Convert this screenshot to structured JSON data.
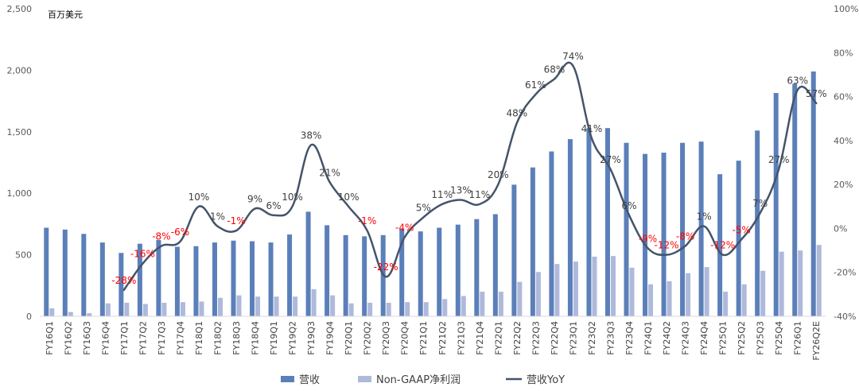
{
  "chart_data": {
    "type": "bar",
    "unit_label": "百万美元",
    "categories": [
      "FY16Q1",
      "FY16Q2",
      "FY16Q3",
      "FY16Q4",
      "FY17Q1",
      "FY17Q2",
      "FY17Q3",
      "FY17Q4",
      "FY18Q1",
      "FY18Q2",
      "FY18Q3",
      "FY18Q4",
      "FY19Q1",
      "FY19Q2",
      "FY19Q3",
      "FY19Q4",
      "FY20Q1",
      "FY20Q2",
      "FY20Q3",
      "FY20Q4",
      "FY21Q1",
      "FY21Q2",
      "FY21Q3",
      "FY21Q4",
      "FY22Q1",
      "FY22Q2",
      "FY22Q3",
      "FY22Q4",
      "FY23Q1",
      "FY23Q2",
      "FY23Q3",
      "FY23Q4",
      "FY24Q1",
      "FY24Q2",
      "FY24Q3",
      "FY24Q4",
      "FY25Q1",
      "FY25Q2",
      "FY25Q3",
      "FY25Q4",
      "FY26Q1",
      "FY26Q2E"
    ],
    "series": [
      {
        "name": "营收",
        "type": "bar",
        "axis": "left",
        "color": "#5b7fb9",
        "values": [
          720,
          705,
          670,
          600,
          515,
          590,
          620,
          565,
          570,
          600,
          615,
          610,
          600,
          665,
          850,
          740,
          660,
          650,
          660,
          710,
          690,
          720,
          745,
          790,
          830,
          1070,
          1210,
          1340,
          1440,
          1530,
          1530,
          1410,
          1320,
          1330,
          1410,
          1420,
          1155,
          1265,
          1510,
          1815,
          1890,
          1990
        ]
      },
      {
        "name": "Non-GAAP净利润",
        "type": "bar",
        "axis": "left",
        "color": "#aeb9db",
        "values": [
          65,
          35,
          25,
          105,
          110,
          100,
          110,
          115,
          120,
          150,
          170,
          160,
          160,
          160,
          220,
          170,
          105,
          110,
          110,
          115,
          115,
          140,
          165,
          200,
          200,
          280,
          360,
          425,
          445,
          485,
          490,
          395,
          260,
          285,
          350,
          400,
          200,
          260,
          370,
          525,
          535,
          580
        ]
      },
      {
        "name": "营收YoY",
        "type": "line",
        "axis": "right",
        "color": "#44546a",
        "values": [
          null,
          null,
          null,
          null,
          -28,
          -16,
          -8,
          -6,
          10,
          1,
          -1,
          9,
          6,
          10,
          38,
          21,
          10,
          -1,
          -22,
          -4,
          5,
          11,
          13,
          11,
          20,
          48,
          61,
          68,
          74,
          41,
          27,
          6,
          -9,
          -12,
          -8,
          1,
          -12,
          -5,
          7,
          27,
          63,
          57
        ],
        "labels": [
          "",
          "",
          "",
          "",
          "-28%",
          "-16%",
          "-8%",
          "-6%",
          "10%",
          "1%",
          "-1%",
          "9%",
          "6%",
          "10%",
          "38%",
          "21%",
          "10%",
          "-1%",
          "-22%",
          "-4%",
          "5%",
          "11%",
          "13%",
          "11%",
          "20%",
          "48%",
          "61%",
          "68%",
          "74%",
          "41%",
          "27%",
          "6%",
          "-9%",
          "-12%",
          "-8%",
          "1%",
          "-12%",
          "-5%",
          "7%",
          "27%",
          "63%",
          "57%"
        ]
      }
    ],
    "ylim_left": [
      0,
      2500
    ],
    "yticks_left": [
      "0",
      "500",
      "1,000",
      "1,500",
      "2,000",
      "2,500"
    ],
    "ylim_right": [
      -40,
      100
    ],
    "yticks_right": [
      "-40%",
      "-20%",
      "0%",
      "20%",
      "40%",
      "60%",
      "80%",
      "100%"
    ],
    "negative_label_color": "#ff0000",
    "positive_label_color": "#404040",
    "grid": false,
    "legend_position": "bottom"
  }
}
